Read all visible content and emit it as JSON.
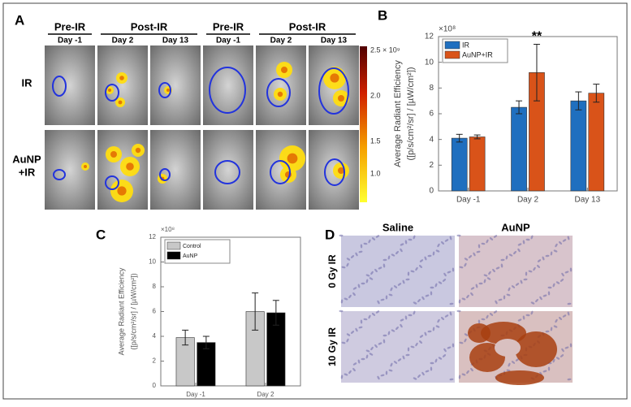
{
  "panel_a": {
    "label": "A",
    "groups": [
      "Pre-IR",
      "Post-IR",
      "Pre-IR",
      "Post-IR"
    ],
    "days": [
      "Day -1",
      "Day 2",
      "Day 13",
      "Day -1",
      "Day 2",
      "Day 13"
    ],
    "rows": [
      "IR",
      "AuNP",
      "+IR"
    ],
    "colorbar_ticks": [
      "2.5 × 10⁹",
      "2.0",
      "1.5",
      "1.0"
    ]
  },
  "panel_d": {
    "label": "D",
    "columns": [
      "Saline",
      "AuNP"
    ],
    "rows": [
      "0 Gy IR",
      "10 Gy IR"
    ]
  },
  "chart_data": [
    {
      "type": "bar",
      "panel": "B",
      "exponent_label": "×10⁸",
      "ylabel": [
        "Average Radiant Efficiency",
        "([p/s/cm²/sr] / [µW/cm²])"
      ],
      "categories": [
        "Day -1",
        "Day 2",
        "Day 13"
      ],
      "series": [
        {
          "name": "IR",
          "color": "#1f6fbf",
          "values": [
            4.1,
            6.5,
            7.0
          ],
          "errors": [
            0.3,
            0.5,
            0.7
          ]
        },
        {
          "name": "AuNP+IR",
          "color": "#d95319",
          "values": [
            4.2,
            9.2,
            7.6
          ],
          "errors": [
            0.15,
            2.2,
            0.7
          ]
        }
      ],
      "annotation": "**",
      "ylim": [
        0,
        12
      ],
      "yticks": [
        0,
        2,
        4,
        6,
        8,
        10,
        12
      ],
      "legend": "upper left"
    },
    {
      "type": "bar",
      "panel": "C",
      "exponent_label": "×10⁸",
      "ylabel": [
        "Average Radiant Efficiency",
        "([p/s/cm²/sr] / [µW/cm²])"
      ],
      "categories": [
        "Day -1",
        "Day 2"
      ],
      "series": [
        {
          "name": "Control",
          "color": "#c8c8c8",
          "values": [
            3.9,
            6.0
          ],
          "errors": [
            0.6,
            1.5
          ]
        },
        {
          "name": "AuNP",
          "color": "#000000",
          "values": [
            3.5,
            5.9
          ],
          "errors": [
            0.5,
            1.0
          ]
        }
      ],
      "ylim": [
        0,
        12
      ],
      "yticks": [
        0,
        2,
        4,
        6,
        8,
        10,
        12
      ],
      "legend": "upper left"
    }
  ]
}
